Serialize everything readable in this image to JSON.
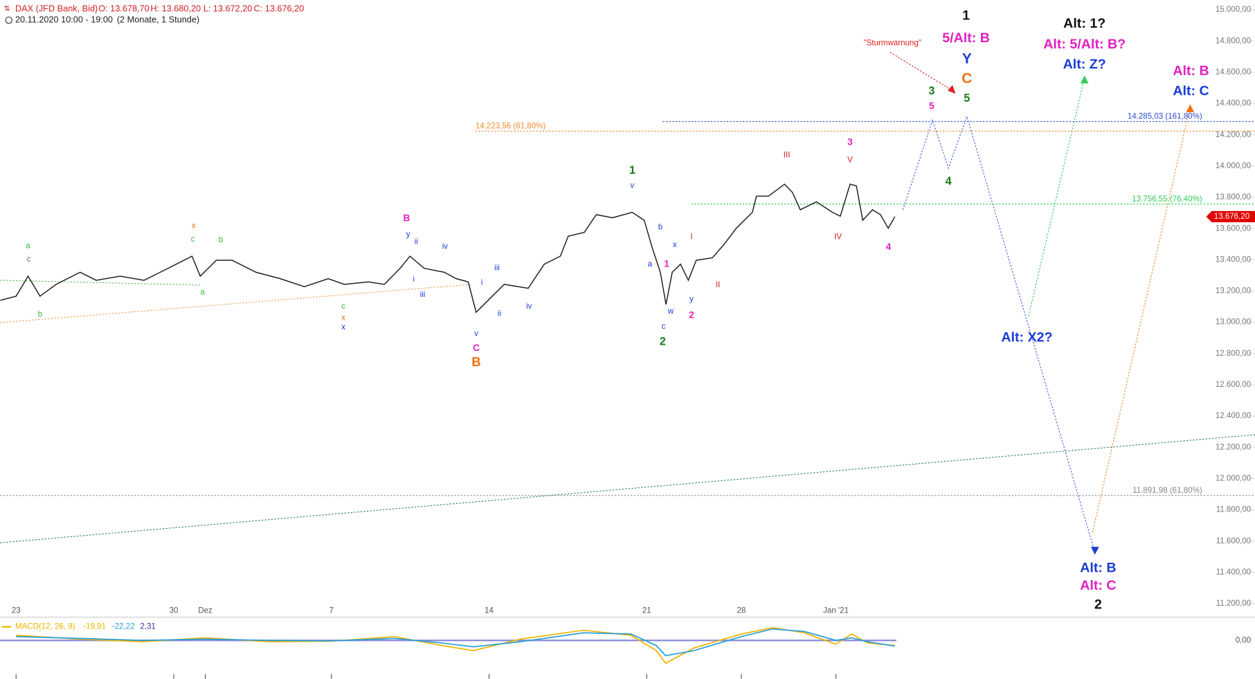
{
  "header": {
    "title": "DAX (JFD Bank, Bid)",
    "open": "O: 13.678,70",
    "high": "H: 13.680,20",
    "low": "L: 13.672,20",
    "close": "C: 13.676,20",
    "period": "20.11.2020 10:00 - 19:00",
    "range": "(2 Monate, 1 Stunde)"
  },
  "chart_data": {
    "type": "line",
    "x": [
      -0.5,
      0,
      0.38,
      0.76,
      1.27,
      2.03,
      2.54,
      3.3,
      4.06,
      4.57,
      5.08,
      5.58,
      5.84,
      6.35,
      6.85,
      7.61,
      8.38,
      9.14,
      9.9,
      10.41,
      11.17,
      11.68,
      12.18,
      12.49,
      12.94,
      13.58,
      13.96,
      14.34,
      14.59,
      14.97,
      15.48,
      16.24,
      16.75,
      17.26,
      17.51,
      18.02,
      18.4,
      18.91,
      19.54,
      19.92,
      20.18,
      20.43,
      20.61,
      20.81,
      21.07,
      21.32,
      21.57,
      22.08,
      22.46,
      22.84,
      23.35,
      23.48,
      23.86,
      24.37,
      24.62,
      24.87,
      25.38,
      25.89,
      26.14,
      26.45,
      26.65,
      26.85,
      27.16,
      27.41,
      27.66,
      27.87
    ],
    "series": [
      {
        "color": "#222222",
        "values": [
          13141,
          13167,
          13295,
          13167,
          13243,
          13320,
          13269,
          13295,
          13269,
          13320,
          13372,
          13423,
          13295,
          13397,
          13397,
          13320,
          13279,
          13228,
          13279,
          13243,
          13259,
          13243,
          13346,
          13423,
          13346,
          13320,
          13279,
          13259,
          13064,
          13141,
          13243,
          13218,
          13372,
          13423,
          13551,
          13576,
          13689,
          13669,
          13704,
          13653,
          13474,
          13320,
          13115,
          13320,
          13372,
          13269,
          13397,
          13413,
          13500,
          13602,
          13704,
          13807,
          13807,
          13884,
          13832,
          13720,
          13771,
          13704,
          13679,
          13884,
          13873,
          13653,
          13720,
          13689,
          13602,
          13676.2
        ]
      }
    ],
    "xlim": [
      -0.51,
      39.29
    ],
    "xticks": [
      {
        "value": 0,
        "label": "23"
      },
      {
        "value": 5,
        "label": "30"
      },
      {
        "value": 6,
        "label": "Dez"
      },
      {
        "value": 10,
        "label": "7"
      },
      {
        "value": 15,
        "label": "14"
      },
      {
        "value": 20,
        "label": "21"
      },
      {
        "value": 23,
        "label": "28"
      },
      {
        "value": 26,
        "label": "Jan '21"
      }
    ],
    "ylim": [
      11200,
      15000
    ],
    "yticks": [
      {
        "value": 11200,
        "label": "11.200,00"
      },
      {
        "value": 11400,
        "label": "11.400,00"
      },
      {
        "value": 11600,
        "label": "11.600,00"
      },
      {
        "value": 11800,
        "label": "11.800,00"
      },
      {
        "value": 12000,
        "label": "12.000,00"
      },
      {
        "value": 12200,
        "label": "12.200,00"
      },
      {
        "value": 12400,
        "label": "12.400,00"
      },
      {
        "value": 12600,
        "label": "12.600,00"
      },
      {
        "value": 12800,
        "label": "12.800,00"
      },
      {
        "value": 13000,
        "label": "13.000,00"
      },
      {
        "value": 13200,
        "label": "13.200,00"
      },
      {
        "value": 13400,
        "label": "13.400,00"
      },
      {
        "value": 13600,
        "label": "13.600,00"
      },
      {
        "value": 13800,
        "label": "13.800,00"
      },
      {
        "value": 14000,
        "label": "14.000,00"
      },
      {
        "value": 14200,
        "label": "14.200,00"
      },
      {
        "value": 14400,
        "label": "14.400,00"
      },
      {
        "value": 14600,
        "label": "14.600,00"
      },
      {
        "value": 14800,
        "label": "14.800,00"
      },
      {
        "value": 15000,
        "label": "15.000,00"
      }
    ],
    "last_price": {
      "value": 13676.2,
      "label": "13.676,20",
      "color": "#e00000"
    },
    "levels": [
      {
        "value": 14285.03,
        "label": "14.285,03 (161,80%)",
        "color": "#2a4bd8"
      },
      {
        "value": 14223.56,
        "label": "14.223,56 (61,80%)",
        "color": "#f08a30"
      },
      {
        "value": 13756.55,
        "label": "13.756,55 (76,40%)",
        "color": "#33cc55"
      },
      {
        "value": 11891.98,
        "label": "11.891,98 (61,80%)",
        "color": "#888888"
      }
    ],
    "annotations": [
      {
        "text": "a",
        "color": "#33bb33"
      },
      {
        "text": "c",
        "color": "#666666"
      },
      {
        "text": "b",
        "color": "#33bb33"
      },
      {
        "text": "x",
        "color": "#f07010"
      },
      {
        "text": "c",
        "color": "#33bb33"
      },
      {
        "text": "b",
        "color": "#33bb33"
      },
      {
        "text": "a",
        "color": "#33bb33"
      },
      {
        "text": "c",
        "color": "#33bb33"
      },
      {
        "text": "x",
        "color": "#f07010"
      },
      {
        "text": "x",
        "color": "#1a3cd8"
      },
      {
        "text": "B",
        "color": "#e020c0"
      },
      {
        "text": "y",
        "color": "#1a3cd8"
      },
      {
        "text": "ii",
        "color": "#1a3cd8"
      },
      {
        "text": "iv",
        "color": "#1a3cd8"
      },
      {
        "text": "i",
        "color": "#1a3cd8"
      },
      {
        "text": "iii",
        "color": "#1a3cd8"
      },
      {
        "text": "iii",
        "color": "#1a3cd8"
      },
      {
        "text": "i",
        "color": "#1a3cd8"
      },
      {
        "text": "ii",
        "color": "#1a3cd8"
      },
      {
        "text": "iv",
        "color": "#1a3cd8"
      },
      {
        "text": "v",
        "color": "#1a3cd8"
      },
      {
        "text": "C",
        "color": "#e020c0"
      },
      {
        "text": "B",
        "color": "#f07010"
      },
      {
        "text": "1",
        "color": "#1a7a1a"
      },
      {
        "text": "v",
        "color": "#1a3cd8"
      },
      {
        "text": "b",
        "color": "#1a3cd8"
      },
      {
        "text": "x",
        "color": "#1a3cd8"
      },
      {
        "text": "a",
        "color": "#1a3cd8"
      },
      {
        "text": "1",
        "color": "#e020c0"
      },
      {
        "text": "w",
        "color": "#1a3cd8"
      },
      {
        "text": "c",
        "color": "#1a3cd8"
      },
      {
        "text": "2",
        "color": "#1a7a1a"
      },
      {
        "text": "y",
        "color": "#1a3cd8"
      },
      {
        "text": "2",
        "color": "#e020c0"
      },
      {
        "text": "I",
        "color": "#d02020"
      },
      {
        "text": "II",
        "color": "#d02020"
      },
      {
        "text": "III",
        "color": "#d02020"
      },
      {
        "text": "3",
        "color": "#e020c0"
      },
      {
        "text": "V",
        "color": "#d02020"
      },
      {
        "text": "IV",
        "color": "#d02020"
      },
      {
        "text": "4",
        "color": "#e020c0"
      },
      {
        "text": "3",
        "color": "#1a7a1a"
      },
      {
        "text": "5",
        "color": "#e020c0"
      },
      {
        "text": "4",
        "color": "#1a7a1a"
      },
      {
        "text": "5",
        "color": "#1a7a1a"
      },
      {
        "text": "C",
        "color": "#f07010"
      },
      {
        "text": "Y",
        "color": "#1a3cd8"
      },
      {
        "text": "5/Alt: B",
        "color": "#e020c0"
      },
      {
        "text": "1",
        "color": "#111111"
      },
      {
        "text": "\"Sturmwarnung\"",
        "color": "#e02020"
      },
      {
        "text": "Alt: 1?",
        "color": "#111111"
      },
      {
        "text": "Alt: 5/Alt: B?",
        "color": "#e020c0"
      },
      {
        "text": "Alt: Z?",
        "color": "#1a3cd8"
      },
      {
        "text": "Alt: B",
        "color": "#e020c0"
      },
      {
        "text": "Alt: C",
        "color": "#1a3cd8"
      },
      {
        "text": "Alt: X2?",
        "color": "#1a3cd8"
      },
      {
        "text": "Alt: B",
        "color": "#1a3cd8"
      },
      {
        "text": "Alt: C",
        "color": "#e020c0"
      },
      {
        "text": "2",
        "color": "#111111"
      }
    ]
  },
  "macd": {
    "type": "line",
    "label": "MACD(12, 26, 9)",
    "macd_label": "-19,91",
    "signal_label": "-22,22",
    "hist_label": "2,31",
    "x": [
      0,
      2,
      4,
      6,
      8,
      10,
      12,
      13.5,
      14.5,
      16,
      18,
      19.5,
      20.3,
      20.6,
      21.5,
      23,
      24,
      25,
      26,
      26.5,
      27,
      27.87
    ],
    "series": [
      {
        "color": "#f0b400",
        "values": [
          20,
          5,
          -5,
          10,
          -5,
          -3,
          15,
          -20,
          -40,
          5,
          40,
          20,
          -40,
          -90,
          -30,
          25,
          50,
          30,
          -15,
          25,
          -10,
          -19.91
        ]
      },
      {
        "color": "#2a9fd8",
        "values": [
          15,
          8,
          0,
          5,
          0,
          -2,
          8,
          -10,
          -25,
          -5,
          30,
          25,
          -20,
          -60,
          -40,
          15,
          45,
          35,
          0,
          10,
          -5,
          -22.22
        ]
      }
    ],
    "ylim": [
      -110,
      110
    ],
    "yticks": [
      {
        "value": 0,
        "label": "0,00"
      }
    ]
  }
}
